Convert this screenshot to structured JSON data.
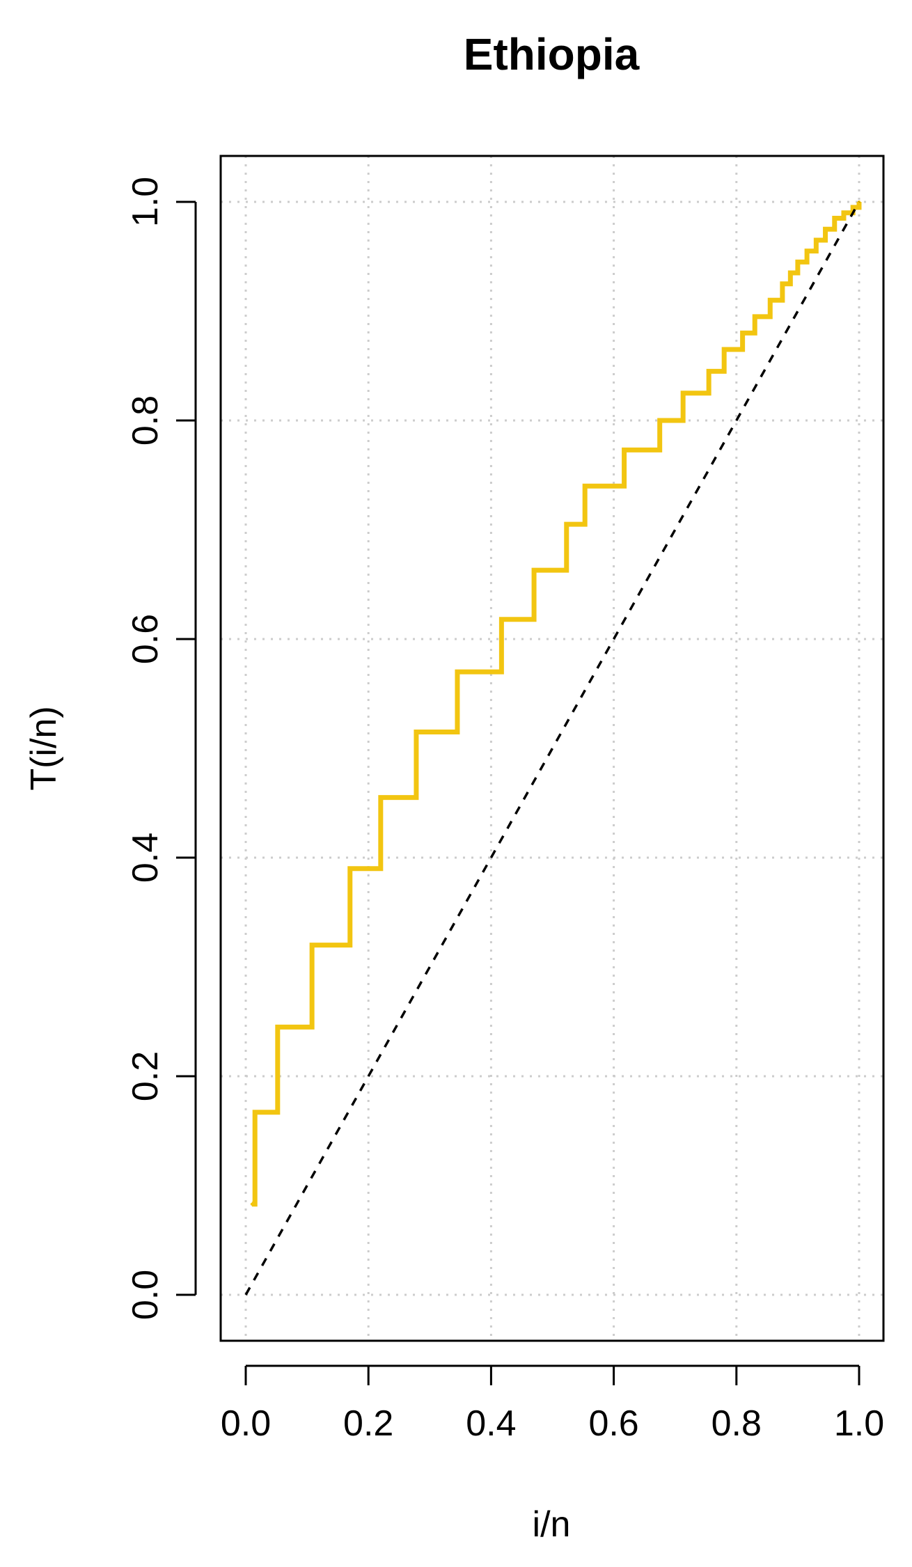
{
  "chart_data": {
    "type": "line",
    "title": "Ethiopia",
    "xlabel": "i/n",
    "ylabel": "T(i/n)",
    "xlim": [
      0,
      1
    ],
    "ylim": [
      0,
      1
    ],
    "xticks": [
      0,
      0.2,
      0.4,
      0.6,
      0.8,
      1
    ],
    "yticks": [
      0,
      0.2,
      0.4,
      0.6,
      0.8,
      1
    ],
    "xtick_labels": [
      "0.0",
      "0.2",
      "0.4",
      "0.6",
      "0.8",
      "1.0"
    ],
    "ytick_labels": [
      "0.0",
      "0.2",
      "0.4",
      "0.6",
      "0.8",
      "1.0"
    ],
    "grid": true,
    "colors": {
      "curve": "#F2C511",
      "reference": "#000000",
      "grid": "#cccccc"
    },
    "series": [
      {
        "style": "step",
        "x": [
          0.01,
          0.015,
          0.052,
          0.108,
          0.17,
          0.22,
          0.278,
          0.345,
          0.417,
          0.47,
          0.523,
          0.553,
          0.617,
          0.675,
          0.713,
          0.755,
          0.78,
          0.81,
          0.83,
          0.855,
          0.875,
          0.888,
          0.9,
          0.915,
          0.93,
          0.945,
          0.96,
          0.975,
          0.99,
          1.0
        ],
        "y": [
          0.083,
          0.167,
          0.245,
          0.32,
          0.39,
          0.455,
          0.515,
          0.57,
          0.618,
          0.663,
          0.705,
          0.74,
          0.773,
          0.8,
          0.825,
          0.845,
          0.865,
          0.88,
          0.895,
          0.91,
          0.925,
          0.935,
          0.945,
          0.955,
          0.965,
          0.975,
          0.985,
          0.99,
          0.995,
          1.0
        ]
      },
      {
        "style": "dashed",
        "x": [
          0,
          1
        ],
        "y": [
          0,
          1
        ]
      }
    ]
  }
}
